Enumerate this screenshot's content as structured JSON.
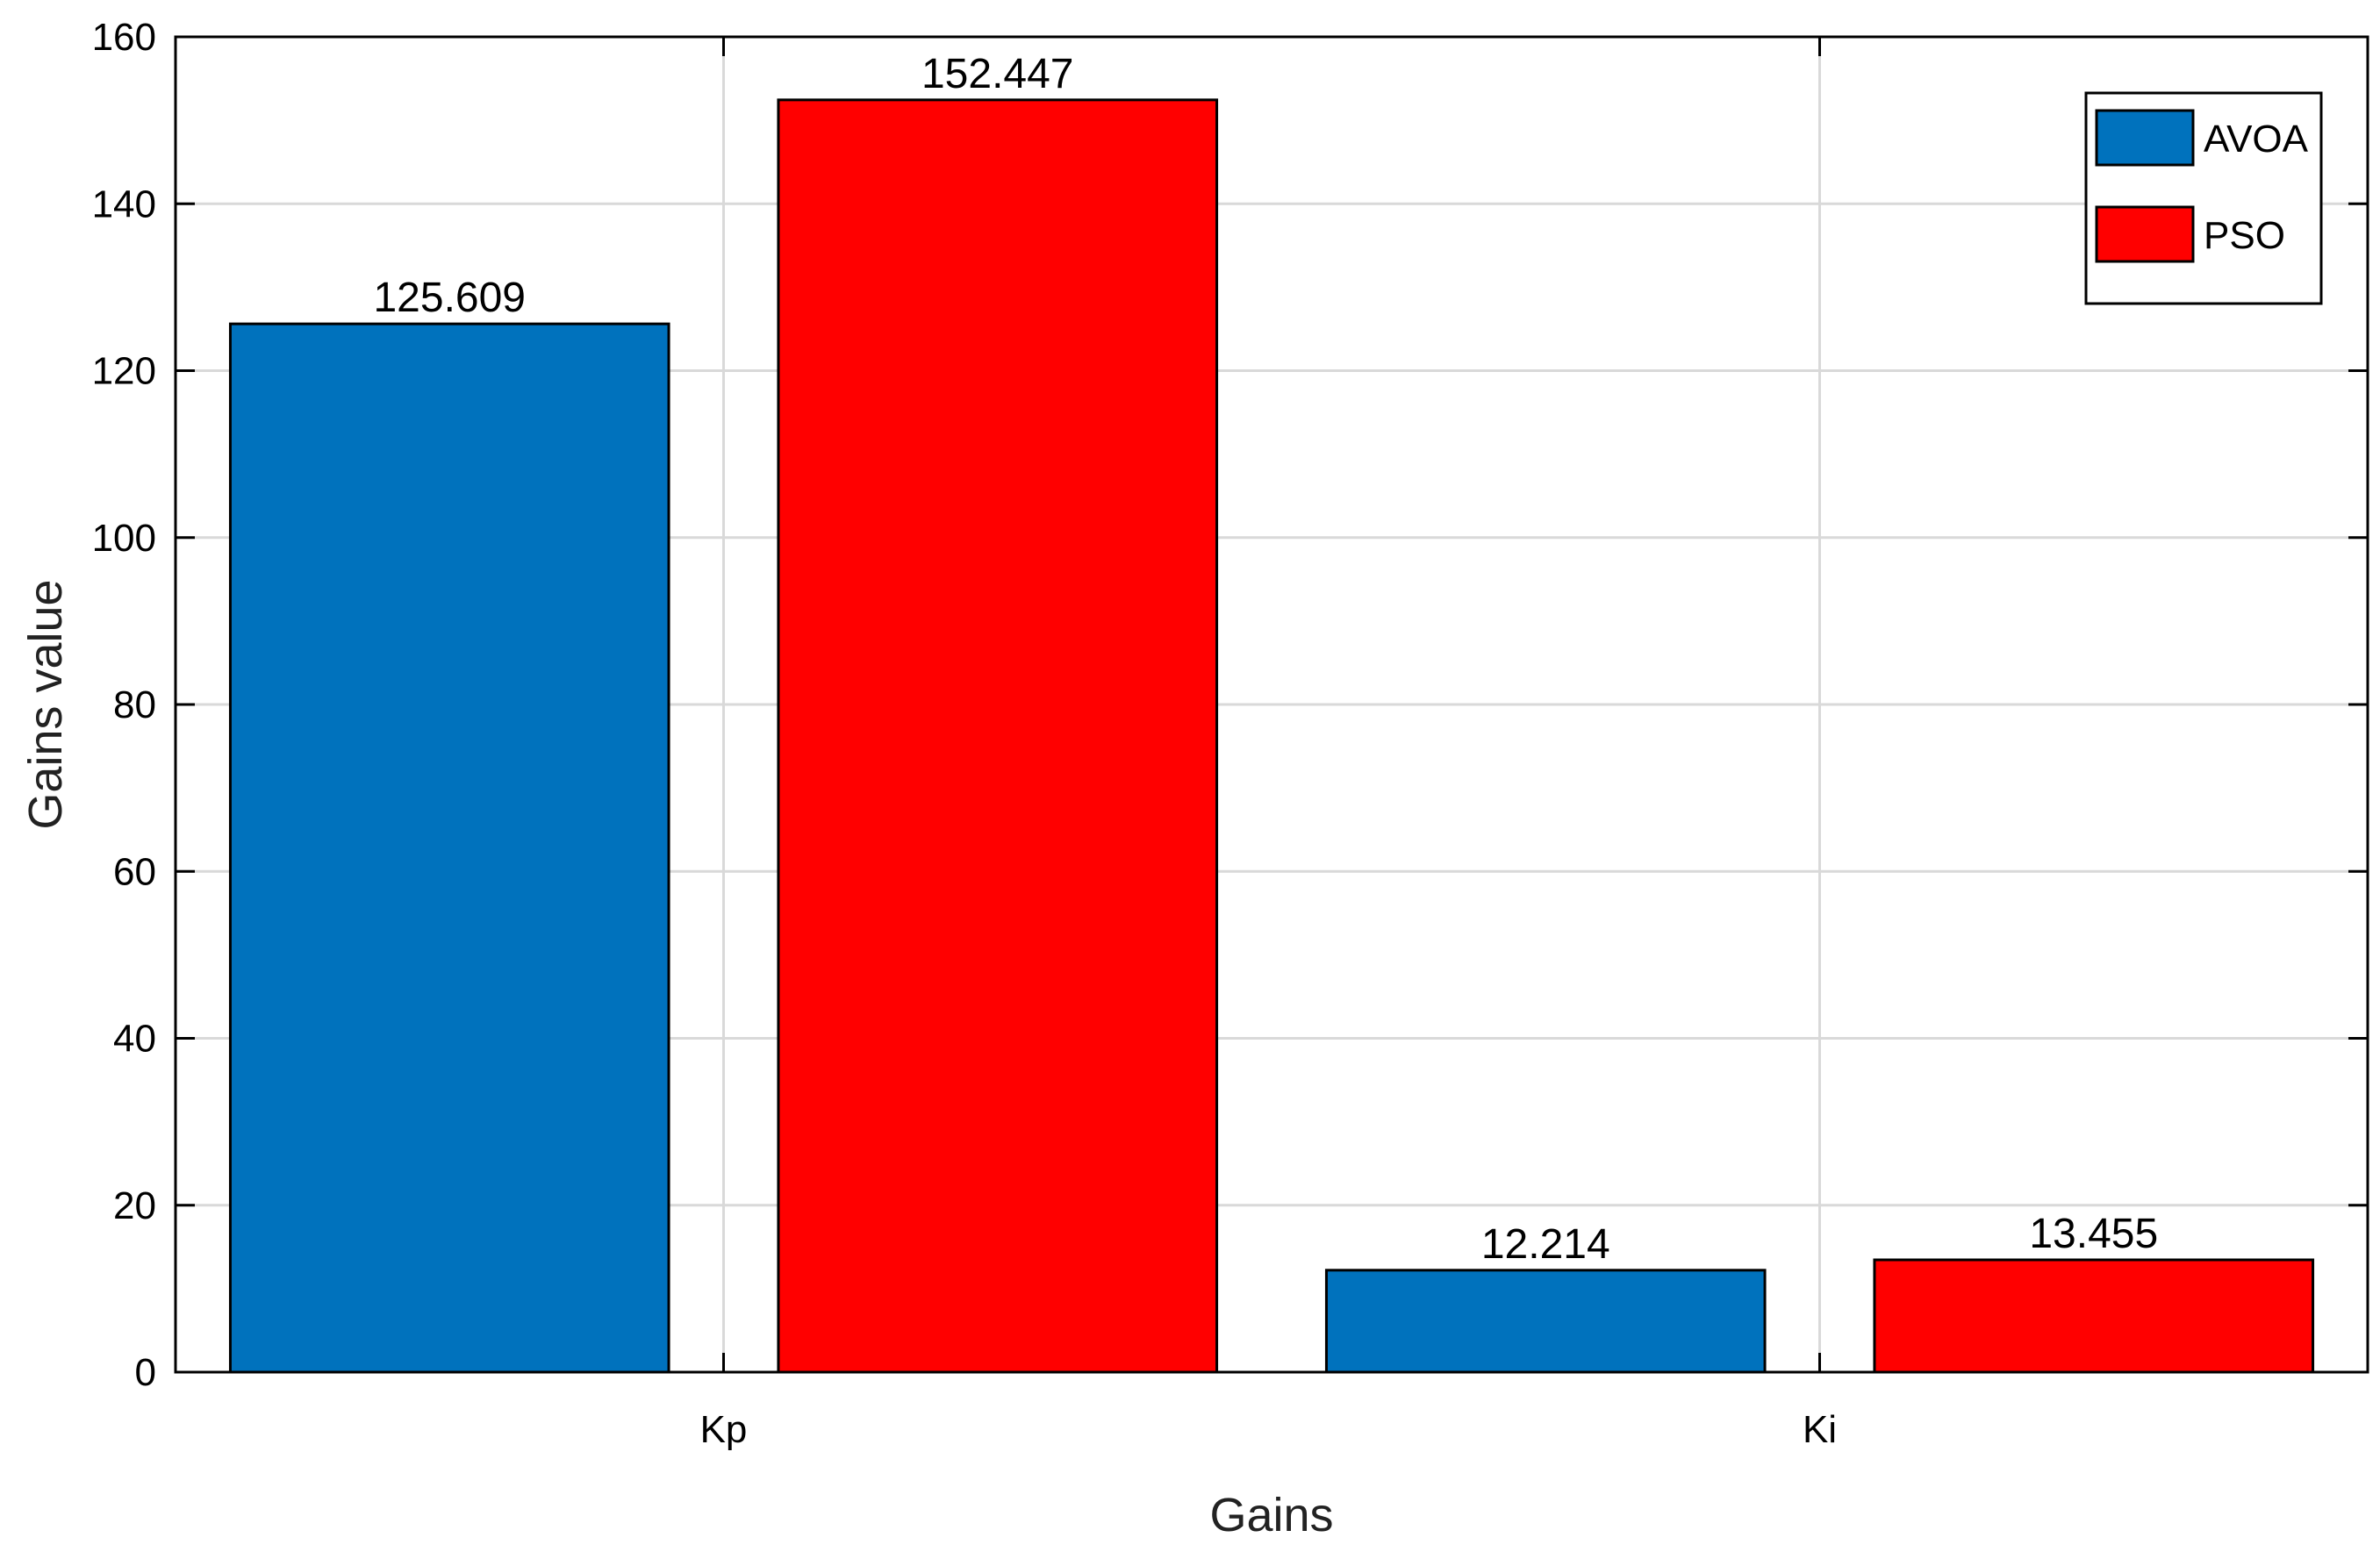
{
  "chart_data": {
    "type": "bar",
    "categories": [
      "Kp",
      "Ki"
    ],
    "series": [
      {
        "name": "AVOA",
        "values": [
          125.609,
          12.214
        ],
        "color": "#0072BD"
      },
      {
        "name": "PSO",
        "values": [
          152.447,
          13.455
        ],
        "color": "#FF0000"
      }
    ],
    "data_labels": [
      [
        "125.609",
        "12.214"
      ],
      [
        "152.447",
        "13.455"
      ]
    ],
    "xlabel": "Gains",
    "ylabel": "Gains value",
    "ylim": [
      0,
      160
    ],
    "yticks": [
      0,
      20,
      40,
      60,
      80,
      100,
      120,
      140,
      160
    ],
    "grid": true,
    "legend_position": "top-right"
  }
}
